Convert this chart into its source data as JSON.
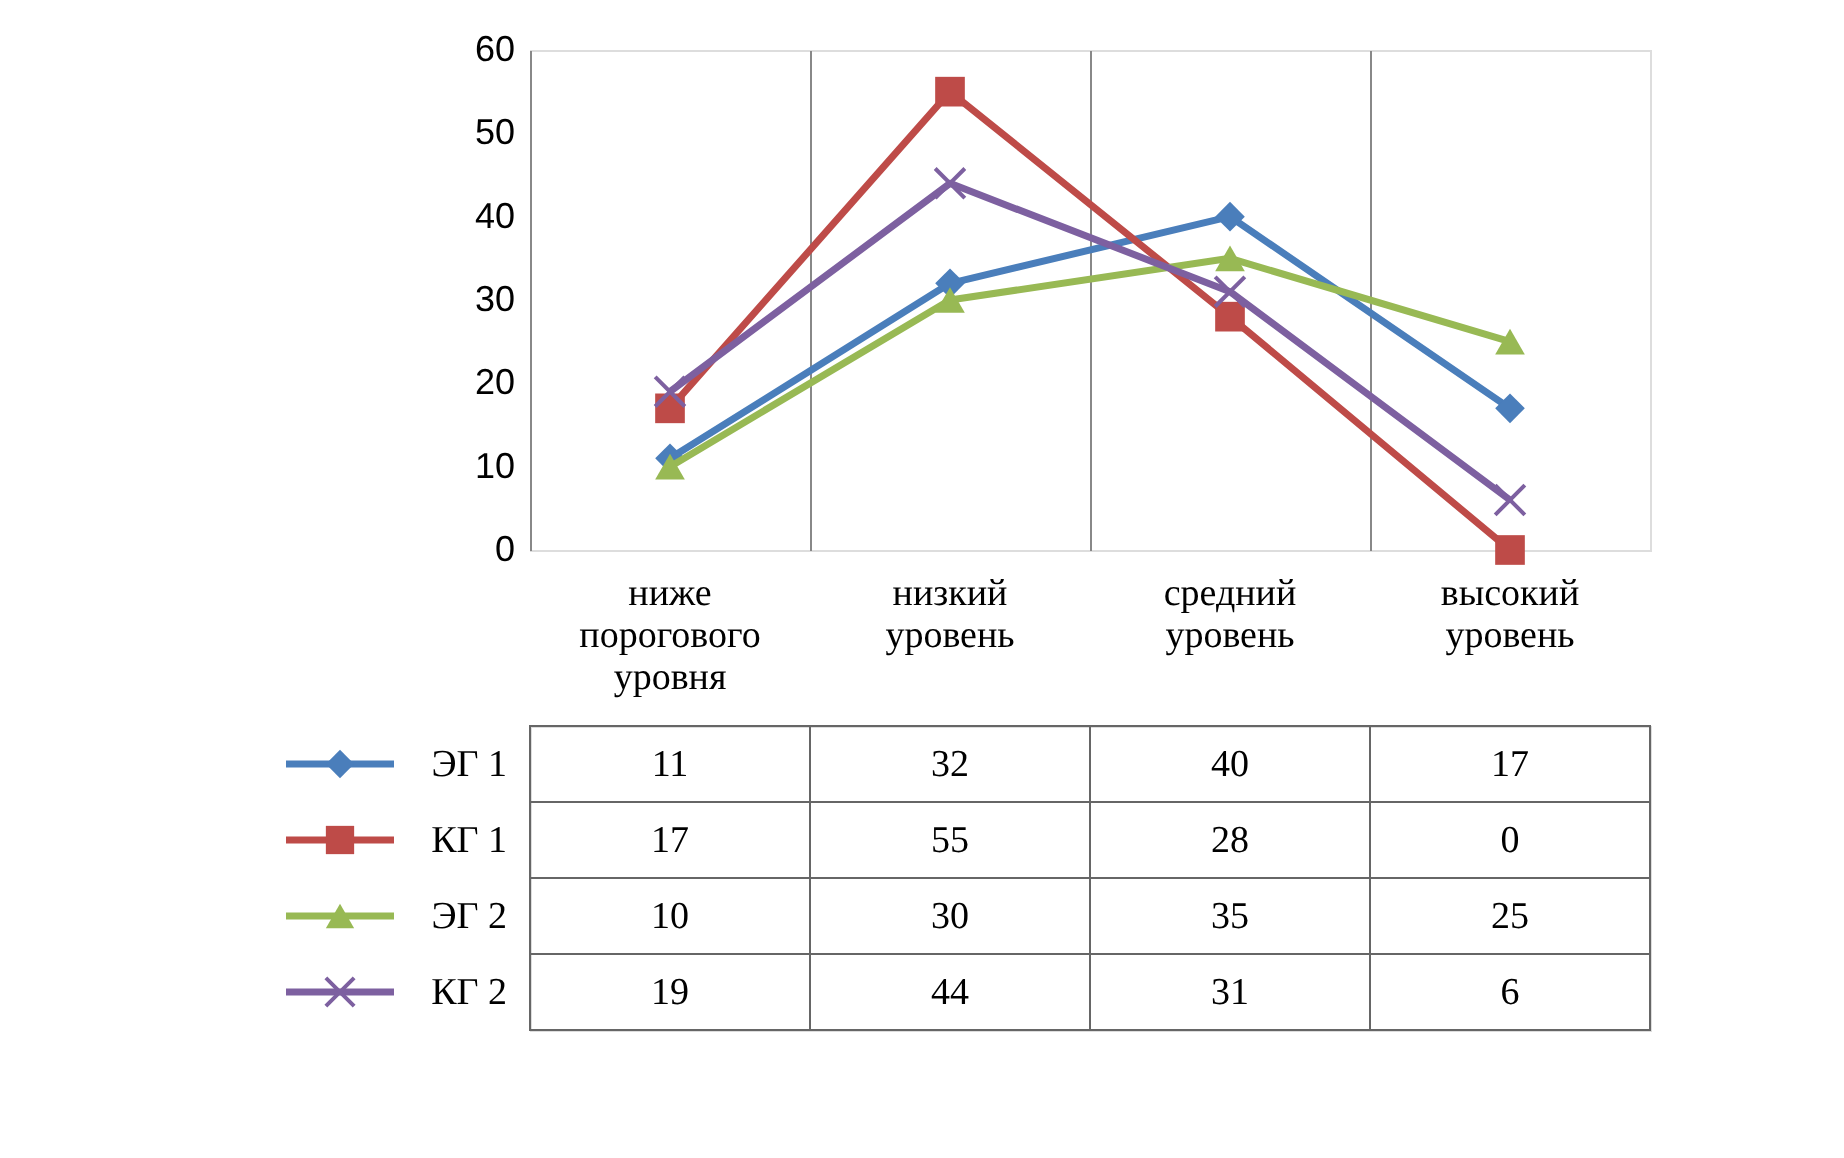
{
  "chart_data": {
    "type": "line",
    "categories": [
      "ниже порогового уровня",
      "низкий уровень",
      "средний уровень",
      "высокий уровень"
    ],
    "series": [
      {
        "name": "ЭГ 1",
        "color": "#4a7ebb",
        "marker": "diamond",
        "values": [
          11,
          32,
          40,
          17
        ]
      },
      {
        "name": "КГ 1",
        "color": "#be4b48",
        "marker": "square",
        "values": [
          17,
          55,
          28,
          0
        ]
      },
      {
        "name": "ЭГ 2",
        "color": "#98b954",
        "marker": "triangle",
        "values": [
          10,
          30,
          35,
          25
        ]
      },
      {
        "name": "КГ 2",
        "color": "#7d60a0",
        "marker": "cross",
        "values": [
          19,
          44,
          31,
          6
        ]
      }
    ],
    "ylim": [
      0,
      60
    ],
    "yticks": [
      0,
      10,
      20,
      30,
      40,
      50,
      60
    ],
    "grid": "x",
    "legend": "bottom left",
    "data_labels": true,
    "line_style": "solid"
  }
}
